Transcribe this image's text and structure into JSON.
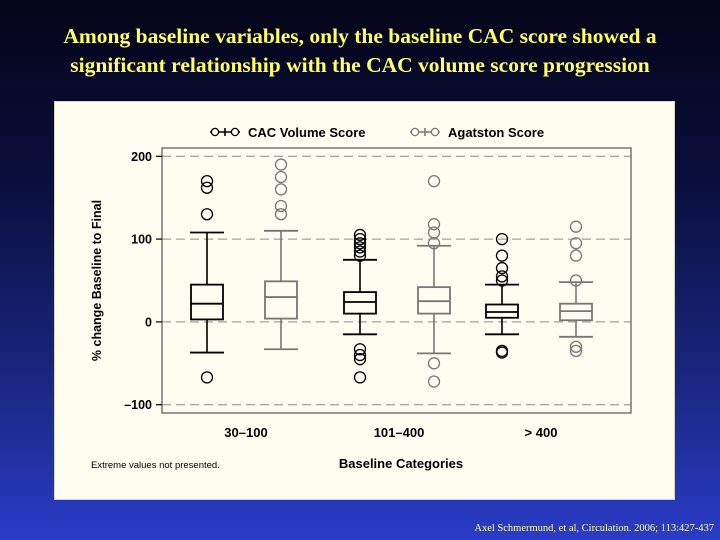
{
  "slide": {
    "title_line1": "Among baseline variables, only the baseline CAC score showed a",
    "title_line2": "significant relationship with the CAC volume score progression",
    "citation": "Axel Schmermund, et al, Circulation.  2006; 113:427-437"
  },
  "chart_data": {
    "type": "boxplot",
    "title": "",
    "xlabel": "Baseline Categories",
    "ylabel": "% change Baseline to Final",
    "ylim": [
      -110,
      210
    ],
    "yticks": [
      200,
      100,
      0,
      -100
    ],
    "ytick_labels": [
      "200",
      "100",
      "0",
      "–100"
    ],
    "grid": "dashed horizontal lines at tick values",
    "legend": {
      "placement": "top",
      "entries": [
        "CAC Volume Score",
        "Agatston Score"
      ]
    },
    "footnote": "Extreme values not presented.",
    "categories": [
      "30–100",
      "101–400",
      "> 400"
    ],
    "series": [
      {
        "name": "CAC Volume Score",
        "color": "#000000",
        "boxes": [
          {
            "category": "30–100",
            "whisker_low": -37,
            "q1": 3,
            "median": 22,
            "q3": 45,
            "whisker_high": 108,
            "outliers": [
              -67,
              130,
              162,
              170
            ]
          },
          {
            "category": "101–400",
            "whisker_low": -15,
            "q1": 10,
            "median": 24,
            "q3": 36,
            "whisker_high": 75,
            "outliers": [
              -67,
              -45,
              -40,
              -33,
              80,
              85,
              90,
              95,
              100,
              105
            ]
          },
          {
            "category": "> 400",
            "whisker_low": -15,
            "q1": 5,
            "median": 12,
            "q3": 21,
            "whisker_high": 45,
            "outliers": [
              -37,
              -35,
              50,
              55,
              65,
              80,
              100
            ]
          }
        ]
      },
      {
        "name": "Agatston Score",
        "color": "#777777",
        "boxes": [
          {
            "category": "30–100",
            "whisker_low": -33,
            "q1": 4,
            "median": 30,
            "q3": 49,
            "whisker_high": 110,
            "outliers": [
              130,
              140,
              160,
              175,
              190
            ]
          },
          {
            "category": "101–400",
            "whisker_low": -38,
            "q1": 10,
            "median": 25,
            "q3": 42,
            "whisker_high": 92,
            "outliers": [
              -72,
              -50,
              95,
              108,
              118,
              170
            ]
          },
          {
            "category": "> 400",
            "whisker_low": -18,
            "q1": 2,
            "median": 13,
            "q3": 22,
            "whisker_high": 48,
            "outliers": [
              -35,
              -30,
              50,
              80,
              95,
              115
            ]
          }
        ]
      }
    ]
  }
}
